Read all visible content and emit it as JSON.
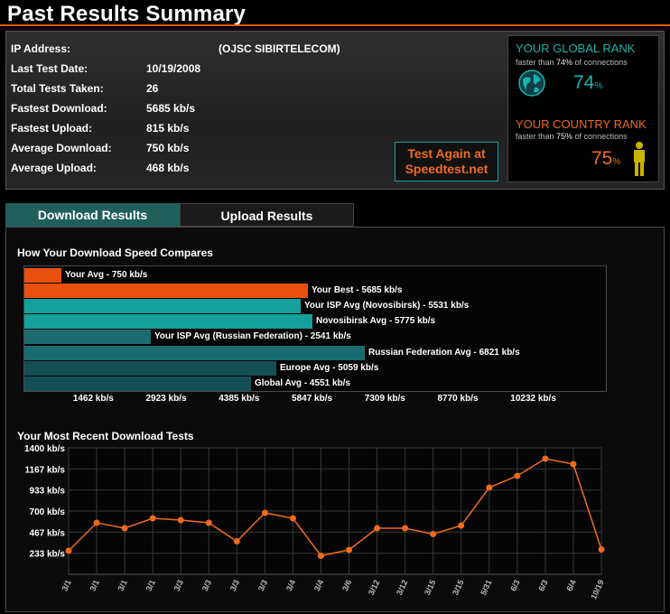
{
  "page": {
    "title": "Past Results Summary"
  },
  "summary": {
    "rows": [
      {
        "label": "IP Address:",
        "value": ""
      },
      {
        "label": "Last Test Date:",
        "value": "10/19/2008"
      },
      {
        "label": "Total Tests Taken:",
        "value": "26"
      },
      {
        "label": "Fastest Download:",
        "value": "5685 kb/s"
      },
      {
        "label": "Fastest Upload:",
        "value": "815 kb/s"
      },
      {
        "label": "Average Download:",
        "value": "750 kb/s"
      },
      {
        "label": "Average Upload:",
        "value": "468 kb/s"
      }
    ],
    "isp": "(OJSC SIBIRTELECOM)",
    "test_again_line1": "Test Again at",
    "test_again_line2": "Speedtest.net"
  },
  "ranks": {
    "global": {
      "title": "YOUR GLOBAL RANK",
      "sub_prefix": "faster than ",
      "percent": "74%",
      "sub_suffix": " of connections",
      "value": "74",
      "unit": "%",
      "color": "#1ab3b0"
    },
    "country": {
      "title": "YOUR COUNTRY RANK",
      "sub_prefix": "faster than ",
      "percent": "75%",
      "sub_suffix": " of connections",
      "value": "75",
      "unit": "%",
      "color": "#ef6a1f"
    }
  },
  "tabs": {
    "download": "Download Results",
    "upload": "Upload Results"
  },
  "compare": {
    "title": "How Your Download Speed Compares",
    "bars": [
      {
        "label": "Your Avg - 750 kb/s",
        "value": 750,
        "color": "#e9500e"
      },
      {
        "label": "Your Best - 5685 kb/s",
        "value": 5685,
        "color": "#e9500e"
      },
      {
        "label": "Your ISP Avg (Novosibirsk) - 5531 kb/s",
        "value": 5531,
        "color": "#14a09c"
      },
      {
        "label": "Novosibirsk Avg - 5775 kb/s",
        "value": 5775,
        "color": "#14a09c"
      },
      {
        "label": "Your ISP Avg (Russian Federation) - 2541 kb/s",
        "value": 2541,
        "color": "#1a6b70"
      },
      {
        "label": "Russian Federation Avg - 6821 kb/s",
        "value": 6821,
        "color": "#1a6b70"
      },
      {
        "label": "Europe Avg - 5059 kb/s",
        "value": 5059,
        "color": "#164e55"
      },
      {
        "label": "Global Avg - 4551 kb/s",
        "value": 4551,
        "color": "#164e55"
      }
    ],
    "axis_max": 11693,
    "ticks": [
      "1462 kb/s",
      "2923 kb/s",
      "4385 kb/s",
      "5847 kb/s",
      "7309 kb/s",
      "8770 kb/s",
      "10232 kb/s"
    ],
    "tick_values": [
      1462,
      2923,
      4385,
      5847,
      7309,
      8770,
      10232
    ]
  },
  "chart_data": {
    "type": "line",
    "title": "Your Most Recent Download Tests",
    "x": [
      "3/1",
      "3/1",
      "3/1",
      "3/1",
      "3/3",
      "3/3",
      "3/3",
      "3/3",
      "3/4",
      "3/4",
      "3/6",
      "3/12",
      "3/12",
      "3/15",
      "3/15",
      "5/31",
      "6/3",
      "6/3",
      "6/4",
      "10/19"
    ],
    "series": [
      {
        "values": [
          260,
          570,
          510,
          620,
          600,
          570,
          365,
          680,
          620,
          205,
          270,
          510,
          510,
          445,
          540,
          960,
          1090,
          1280,
          1220,
          275
        ],
        "color": "#ef6a1f"
      }
    ],
    "ylim": [
      0,
      1400
    ],
    "yticks": [
      "233 kb/s",
      "467 kb/s",
      "700 kb/s",
      "933 kb/s",
      "1167 kb/s",
      "1400 kb/s"
    ],
    "ytick_values": [
      233,
      467,
      700,
      933,
      1167,
      1400
    ],
    "grid": true
  }
}
